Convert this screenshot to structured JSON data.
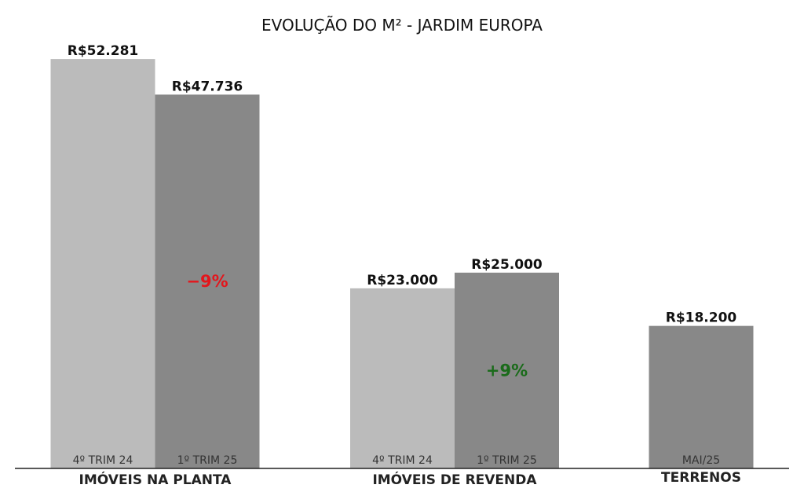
{
  "chart_data": {
    "type": "bar",
    "title": "EVOLUÇÃO DO M² - JARDIM EUROPA",
    "ylim": [
      0,
      55000
    ],
    "colors": {
      "light": "#bbbbbb",
      "dark": "#888888",
      "axis": "#222222"
    },
    "groups": [
      {
        "name": "IMÓVEIS NA PLANTA",
        "bars": [
          {
            "label": "4º TRIM 24",
            "value": 52281,
            "value_text": "R$52.281",
            "shade": "light"
          },
          {
            "label": "1º TRIM 25",
            "value": 47736,
            "value_text": "R$47.736",
            "shade": "dark"
          }
        ],
        "change": {
          "text": "−9%",
          "color": "#e3161c"
        }
      },
      {
        "name": "IMÓVEIS DE REVENDA",
        "bars": [
          {
            "label": "4º TRIM 24",
            "value": 23000,
            "value_text": "R$23.000",
            "shade": "light"
          },
          {
            "label": "1º TRIM 25",
            "value": 25000,
            "value_text": "R$25.000",
            "shade": "dark"
          }
        ],
        "change": {
          "text": "+9%",
          "color": "#1a6b1a"
        }
      },
      {
        "name": "TERRENOS",
        "bars": [
          {
            "label": "MAI/25",
            "value": 18200,
            "value_text": "R$18.200",
            "shade": "dark"
          }
        ],
        "change": null
      }
    ]
  }
}
